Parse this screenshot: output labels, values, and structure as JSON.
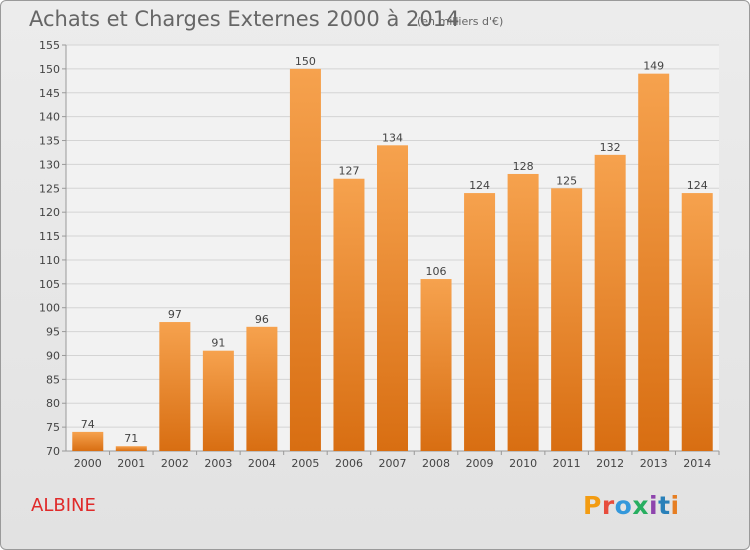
{
  "header": {
    "title": "Achats et Charges Externes 2000 à 2014",
    "unit": "(en milliers d'€)"
  },
  "footer": {
    "commune": "ALBINE",
    "logo": "Proxiti"
  },
  "colors": {
    "bar_top": "#f6a24e",
    "bar_bottom": "#d86e12",
    "commune": "#e02a2a",
    "logo_letters": [
      "#f39c12",
      "#e74c3c",
      "#3498db",
      "#27ae60",
      "#8e44ad",
      "#2980b9",
      "#e67e22"
    ]
  },
  "chart_data": {
    "type": "bar",
    "title": "Achats et Charges Externes 2000 à 2014",
    "subtitle": "(en milliers d'€)",
    "categories": [
      "2000",
      "2001",
      "2002",
      "2003",
      "2004",
      "2005",
      "2006",
      "2007",
      "2008",
      "2009",
      "2010",
      "2011",
      "2012",
      "2013",
      "2014"
    ],
    "values": [
      74,
      71,
      97,
      91,
      96,
      150,
      127,
      134,
      106,
      124,
      128,
      125,
      132,
      149,
      124
    ],
    "ylim": [
      70,
      155
    ],
    "yticks": [
      70,
      75,
      80,
      85,
      90,
      95,
      100,
      105,
      110,
      115,
      120,
      125,
      130,
      135,
      140,
      145,
      150,
      155
    ],
    "grid": true,
    "data_labels": true
  }
}
